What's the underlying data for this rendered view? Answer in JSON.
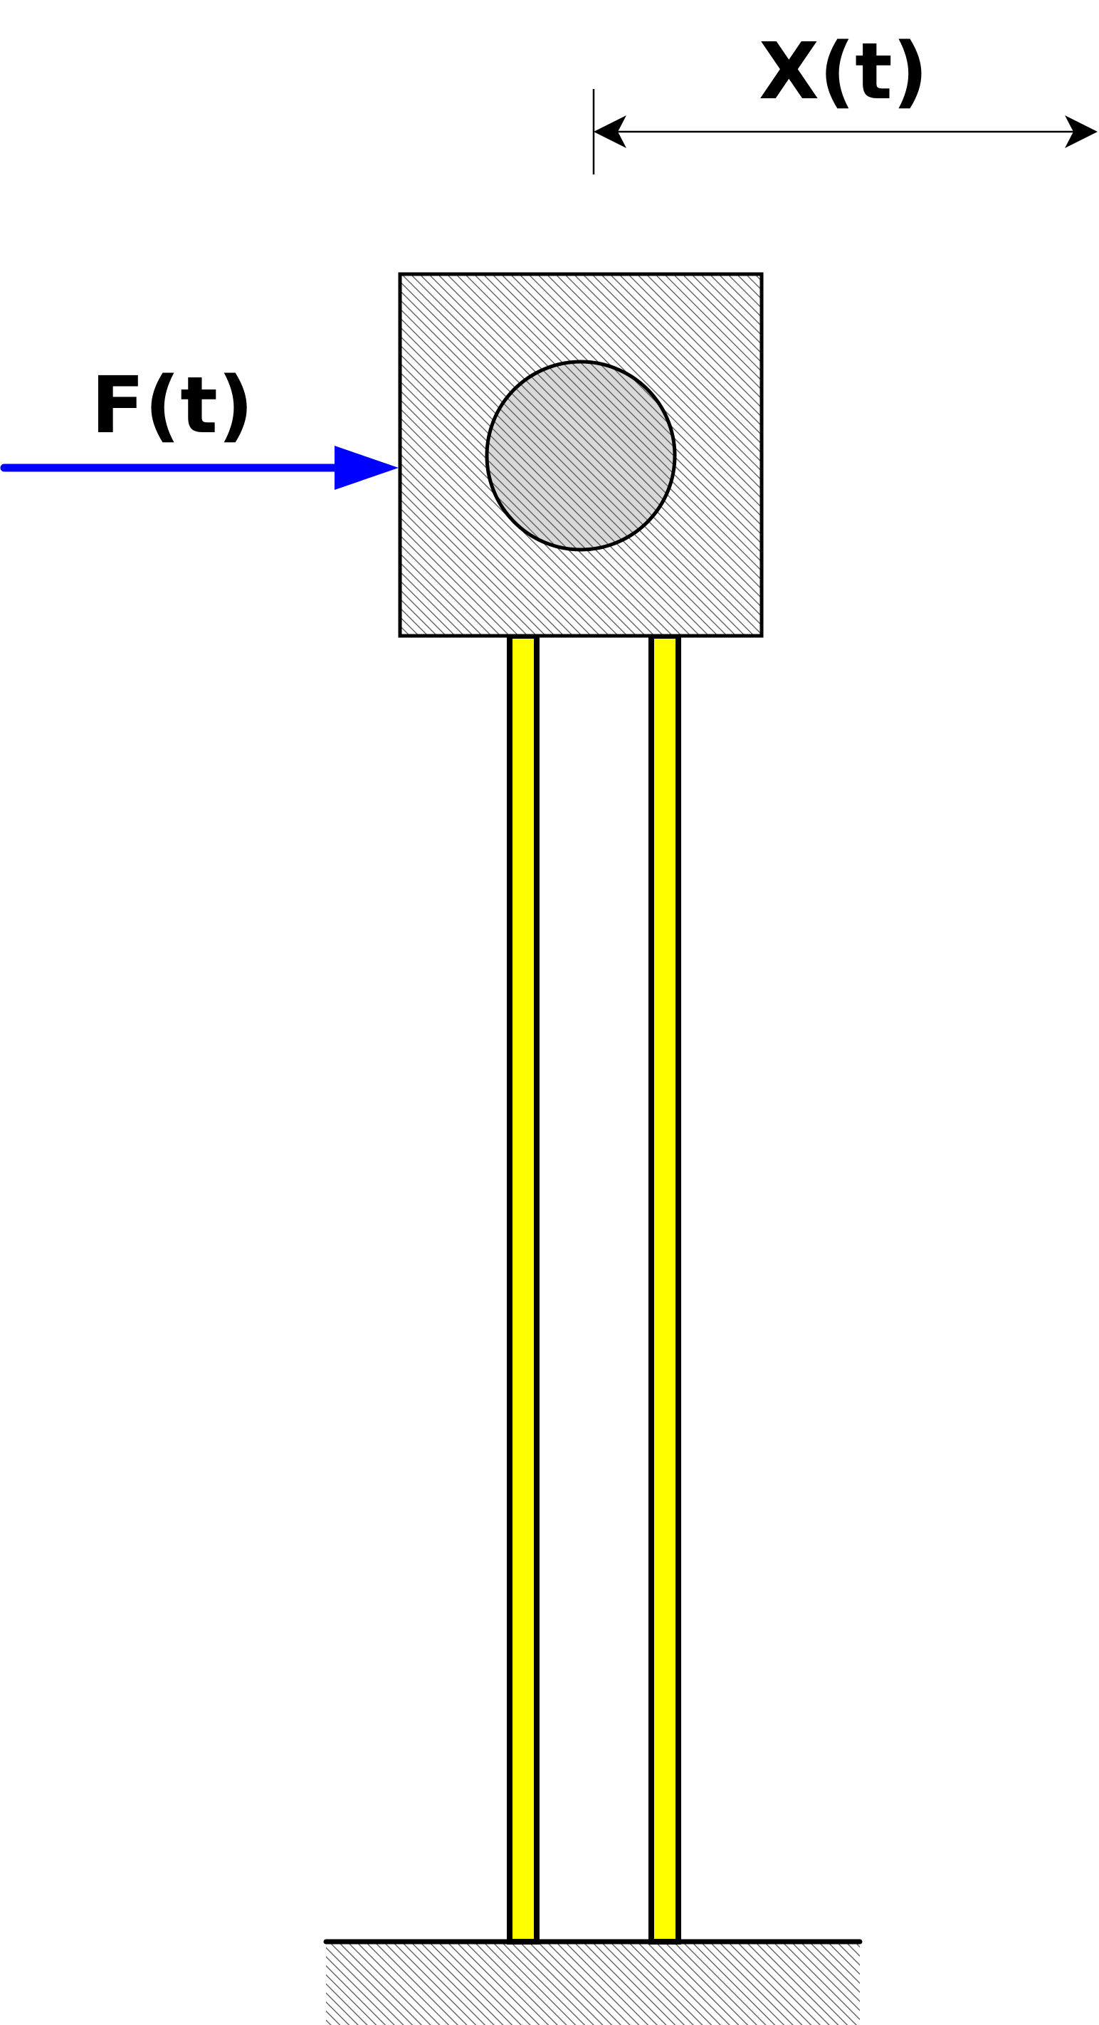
{
  "labels": {
    "displacement": "X(t)",
    "force": "F(t)"
  },
  "colors": {
    "force_arrow": "#0000ff",
    "column_fill": "#ffff00",
    "mass_fill": "#d9d9d9",
    "outline": "#000000",
    "hatch": "#555555"
  }
}
